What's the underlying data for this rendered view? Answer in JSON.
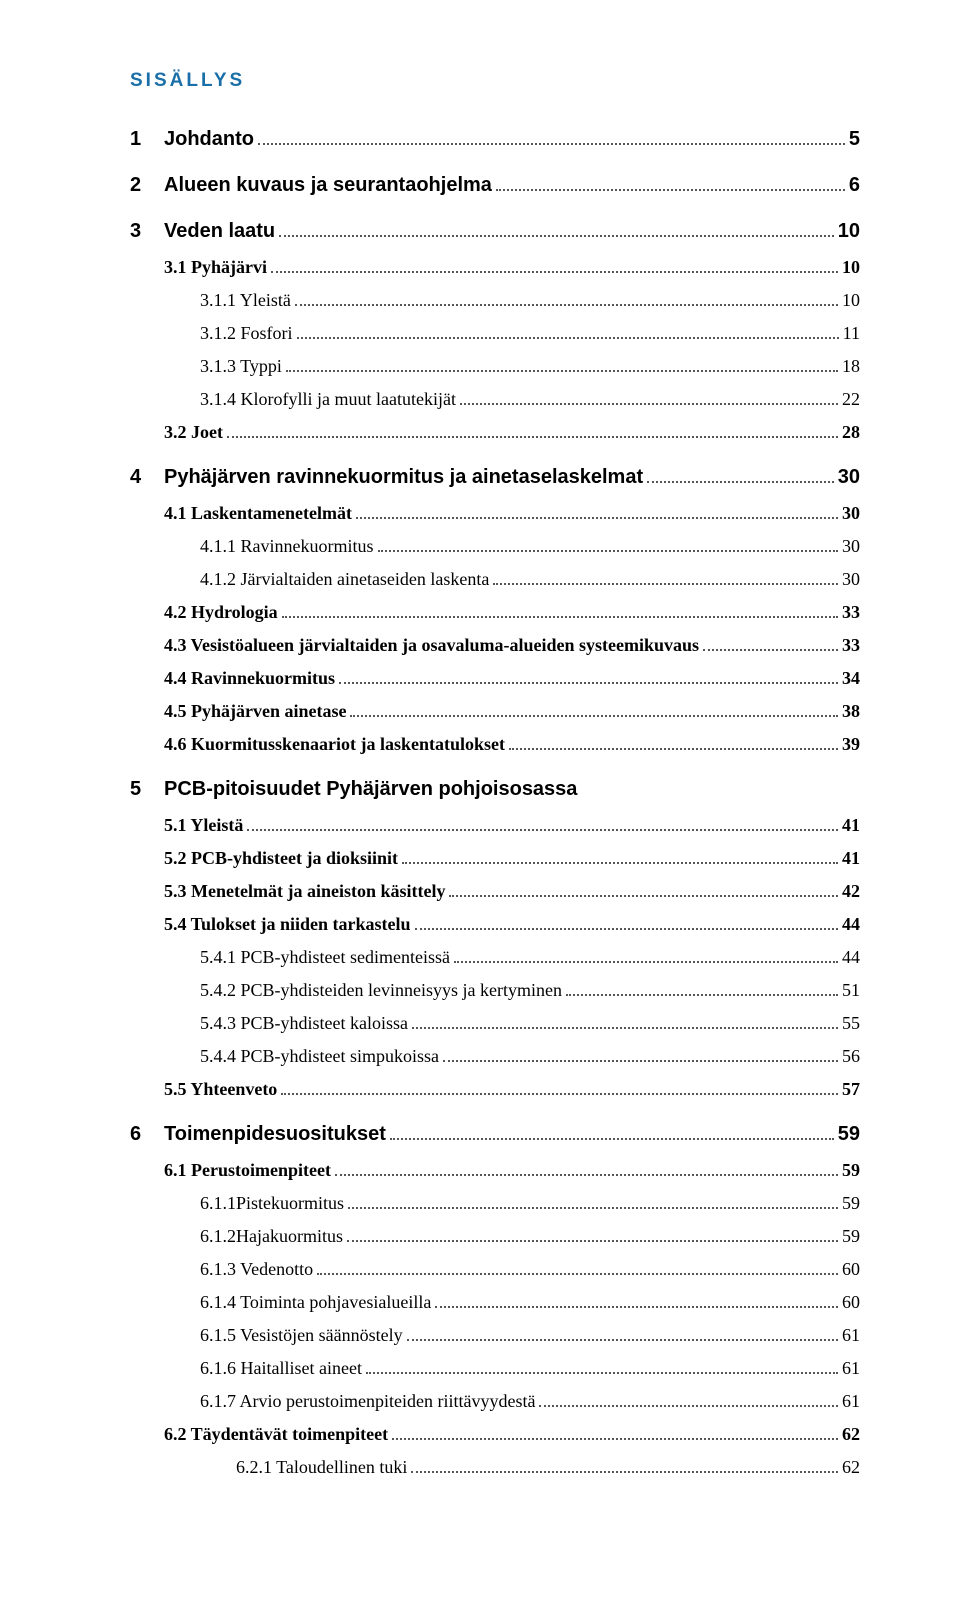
{
  "title": "SISÄLLYS",
  "colors": {
    "title": "#1b6fa8",
    "text": "#000000",
    "background": "#ffffff",
    "leader": "#555555"
  },
  "entries": [
    {
      "level": 1,
      "num": "1",
      "label": "Johdanto",
      "page": "5"
    },
    {
      "level": 1,
      "num": "2",
      "label": "Alueen kuvaus ja seurantaohjelma",
      "page": "6"
    },
    {
      "level": 1,
      "num": "3",
      "label": "Veden laatu",
      "page": "10"
    },
    {
      "level": 2,
      "num": "",
      "label": "3.1 Pyhäjärvi",
      "page": "10"
    },
    {
      "level": 3,
      "num": "",
      "label": "3.1.1 Yleistä",
      "page": "10"
    },
    {
      "level": 3,
      "num": "",
      "label": "3.1.2 Fosfori",
      "page": "11"
    },
    {
      "level": 3,
      "num": "",
      "label": "3.1.3 Typpi",
      "page": "18"
    },
    {
      "level": 3,
      "num": "",
      "label": "3.1.4 Klorofylli ja muut laatutekijät",
      "page": "22"
    },
    {
      "level": 2,
      "num": "",
      "label": "3.2 Joet",
      "page": "28"
    },
    {
      "level": 1,
      "num": "4",
      "label": "Pyhäjärven ravinnekuormitus ja ainetaselaskelmat",
      "page": "30"
    },
    {
      "level": 2,
      "num": "",
      "label": "4.1 Laskentamenetelmät",
      "page": "30"
    },
    {
      "level": 3,
      "num": "",
      "label": "4.1.1 Ravinnekuormitus",
      "page": "30"
    },
    {
      "level": 3,
      "num": "",
      "label": "4.1.2 Järvialtaiden ainetaseiden laskenta",
      "page": "30"
    },
    {
      "level": 2,
      "num": "",
      "label": "4.2 Hydrologia",
      "page": "33"
    },
    {
      "level": 2,
      "num": "",
      "label": "4.3 Vesistöalueen järvialtaiden ja osavaluma-alueiden systeemikuvaus",
      "page": "33"
    },
    {
      "level": 2,
      "num": "",
      "label": "4.4 Ravinnekuormitus",
      "page": "34"
    },
    {
      "level": 2,
      "num": "",
      "label": "4.5 Pyhäjärven ainetase",
      "page": "38"
    },
    {
      "level": 2,
      "num": "",
      "label": "4.6 Kuormitusskenaariot ja laskentatulokset",
      "page": "39"
    },
    {
      "level": 1,
      "num": "5",
      "label": "PCB-pitoisuudet Pyhäjärven pohjoisosassa",
      "page": ""
    },
    {
      "level": 2,
      "num": "",
      "label": "5.1 Yleistä",
      "page": "41"
    },
    {
      "level": 2,
      "num": "",
      "label": "5.2 PCB-yhdisteet ja dioksiinit",
      "page": "41"
    },
    {
      "level": 2,
      "num": "",
      "label": "5.3 Menetelmät ja aineiston käsittely",
      "page": "42"
    },
    {
      "level": 2,
      "num": "",
      "label": "5.4 Tulokset ja niiden tarkastelu",
      "page": "44"
    },
    {
      "level": 3,
      "num": "",
      "label": "5.4.1 PCB-yhdisteet sedimenteissä",
      "page": "44"
    },
    {
      "level": 3,
      "num": "",
      "label": "5.4.2 PCB-yhdisteiden levinneisyys ja kertyminen",
      "page": "51"
    },
    {
      "level": 3,
      "num": "",
      "label": "5.4.3 PCB-yhdisteet kaloissa",
      "page": "55"
    },
    {
      "level": 3,
      "num": "",
      "label": "5.4.4 PCB-yhdisteet simpukoissa",
      "page": "56"
    },
    {
      "level": 2,
      "num": "",
      "label": "5.5 Yhteenveto",
      "page": "57"
    },
    {
      "level": 1,
      "num": "6",
      "label": "Toimenpidesuositukset",
      "page": "59"
    },
    {
      "level": 2,
      "num": "",
      "label": "6.1 Perustoimenpiteet",
      "page": "59"
    },
    {
      "level": 3,
      "num": "",
      "label": "6.1.1Pistekuormitus",
      "page": "59"
    },
    {
      "level": 3,
      "num": "",
      "label": "6.1.2Hajakuormitus",
      "page": "59"
    },
    {
      "level": 3,
      "num": "",
      "label": "6.1.3 Vedenotto",
      "page": "60"
    },
    {
      "level": 3,
      "num": "",
      "label": "6.1.4 Toiminta pohjavesialueilla",
      "page": "60"
    },
    {
      "level": 3,
      "num": "",
      "label": "6.1.5 Vesistöjen säännöstely",
      "page": "61"
    },
    {
      "level": 3,
      "num": "",
      "label": "6.1.6 Haitalliset aineet",
      "page": "61"
    },
    {
      "level": 3,
      "num": "",
      "label": "6.1.7 Arvio perustoimenpiteiden riittävyydestä",
      "page": "61"
    },
    {
      "level": 2,
      "num": "",
      "label": "6.2 Täydentävät toimenpiteet",
      "page": "62"
    },
    {
      "level": 4,
      "num": "",
      "label": "6.2.1 Taloudellinen tuki",
      "page": "62"
    }
  ]
}
